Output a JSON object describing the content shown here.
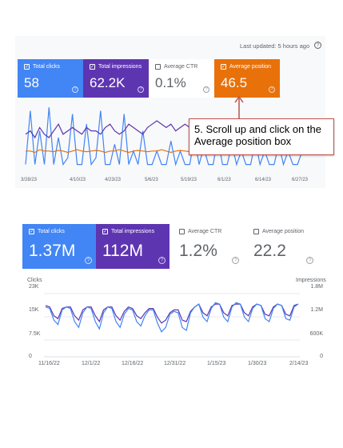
{
  "top": {
    "last_updated": "Last updated: 5 hours ago",
    "help_icon": "help-circle-icon",
    "metrics": [
      {
        "label": "Total clicks",
        "value": "58",
        "checked": true,
        "color": "#4285f4"
      },
      {
        "label": "Total impressions",
        "value": "62.2K",
        "checked": true,
        "color": "#5e35b1"
      },
      {
        "label": "Average CTR",
        "value": "0.1%",
        "checked": false,
        "color": "#ffffff"
      },
      {
        "label": "Average position",
        "value": "46.5",
        "checked": true,
        "color": "#e8710a"
      }
    ],
    "x_ticks": [
      "3/28/23",
      "4/10/23",
      "4/23/23",
      "5/6/23",
      "5/19/23",
      "6/1/23",
      "6/14/23",
      "6/27/23"
    ],
    "callout_text": "5. Scroll up and click on the Average position box",
    "callout_color": "#c0504d"
  },
  "bottom": {
    "metrics": [
      {
        "label": "Total clicks",
        "value": "1.37M",
        "checked": true,
        "color": "#4285f4"
      },
      {
        "label": "Total impressions",
        "value": "112M",
        "checked": true,
        "color": "#5e35b1"
      },
      {
        "label": "Average CTR",
        "value": "1.2%",
        "checked": false,
        "color": "#ffffff"
      },
      {
        "label": "Average position",
        "value": "22.2",
        "checked": false,
        "color": "#ffffff"
      }
    ],
    "left_axis_title": "Clicks",
    "right_axis_title": "Impressions",
    "left_ticks": [
      "23K",
      "15K",
      "7.5K",
      "0"
    ],
    "right_ticks": [
      "1.8M",
      "1.2M",
      "600K",
      "0"
    ],
    "x_ticks": [
      "11/16/22",
      "12/1/22",
      "12/16/22",
      "12/31/22",
      "1/15/23",
      "1/30/23",
      "2/14/23"
    ]
  },
  "chart_data": [
    {
      "type": "line",
      "x_ticks": [
        "3/28/23",
        "4/10/23",
        "4/23/23",
        "5/6/23",
        "5/19/23",
        "6/1/23",
        "6/14/23",
        "6/27/23"
      ],
      "series": [
        {
          "name": "Total clicks",
          "color": "#4285f4",
          "values": [
            0.1,
            0.9,
            0.1,
            0.6,
            0.1,
            0.95,
            0.1,
            0.5,
            0.1,
            0.2,
            0.85,
            0.1,
            0.1,
            0.7,
            0.1,
            0.2,
            0.9,
            0.1,
            0.1,
            0.4,
            0.1,
            0.85,
            0.1,
            0.3,
            0.1,
            0.6,
            0.1,
            0.1,
            0.3,
            0.1,
            0.1,
            0.45,
            0.1,
            0.3,
            0.1,
            0.1,
            0.5,
            0.1,
            0.35,
            0.1,
            0.1,
            0.5,
            0.1,
            0.1,
            0.4,
            0.1,
            0.3,
            0.1,
            0.1,
            0.45,
            0.1,
            0.3,
            0.1,
            0.1,
            0.4,
            0.1,
            0.3,
            0.1,
            0.1,
            0.3
          ]
        },
        {
          "name": "Total impressions",
          "color": "#5e35b1",
          "values": [
            0.55,
            0.6,
            0.5,
            0.65,
            0.55,
            0.5,
            0.6,
            0.7,
            0.55,
            0.6,
            0.65,
            0.6,
            0.55,
            0.65,
            0.6,
            0.6,
            0.55,
            0.65,
            0.7,
            0.6,
            0.55,
            0.6,
            0.7,
            0.65,
            0.6,
            0.55,
            0.65,
            0.7,
            0.75,
            0.7,
            0.65,
            0.7,
            0.6,
            0.65,
            0.7,
            0.65,
            0.6,
            0.65,
            0.55,
            0.6,
            0.65,
            0.6,
            0.5,
            0.45,
            0.55,
            0.6,
            0.5,
            0.45,
            0.5,
            0.55,
            0.5,
            0.45,
            0.5,
            0.55,
            0.5,
            0.45,
            0.5,
            0.55,
            0.5,
            0.5
          ]
        },
        {
          "name": "Average position",
          "color": "#e8710a",
          "values": [
            0.3,
            0.3,
            0.28,
            0.32,
            0.3,
            0.3,
            0.29,
            0.31,
            0.3,
            0.28,
            0.3,
            0.32,
            0.3,
            0.29,
            0.3,
            0.31,
            0.3,
            0.28,
            0.3,
            0.3,
            0.32,
            0.3,
            0.28,
            0.3,
            0.31,
            0.3,
            0.29,
            0.3,
            0.3,
            0.32,
            0.3,
            0.28,
            0.3,
            0.31,
            0.3,
            0.29,
            0.3,
            0.3,
            0.31,
            0.3,
            0.28,
            0.3,
            0.25,
            0.3,
            0.28,
            0.3,
            0.3,
            0.27,
            0.3,
            0.29,
            0.3,
            0.28,
            0.3,
            0.27,
            0.3,
            0.3,
            0.28,
            0.3,
            0.29,
            0.3
          ]
        }
      ]
    },
    {
      "type": "line",
      "x_ticks": [
        "11/16/22",
        "12/1/22",
        "12/16/22",
        "12/31/22",
        "1/15/23",
        "1/30/23",
        "2/14/23"
      ],
      "left_ticks": [
        "23K",
        "15K",
        "7.5K",
        "0"
      ],
      "right_ticks": [
        "1.8M",
        "1.2M",
        "600K",
        "0"
      ],
      "ylim_left": [
        0,
        23000
      ],
      "series": [
        {
          "name": "Total clicks",
          "color": "#4285f4",
          "values": [
            16500,
            16000,
            12000,
            10500,
            15500,
            16500,
            16000,
            11500,
            9500,
            14500,
            16500,
            16000,
            11500,
            9000,
            14500,
            16500,
            16000,
            11500,
            9500,
            14000,
            16000,
            15500,
            11500,
            10000,
            13500,
            15500,
            15500,
            11000,
            8000,
            9500,
            14000,
            15000,
            14500,
            9500,
            8500,
            14500,
            16500,
            17500,
            13000,
            11500,
            16000,
            18000,
            17500,
            13000,
            11500,
            16500,
            18000,
            17500,
            13000,
            11500,
            16000,
            17500,
            17000,
            12500,
            11500,
            16000,
            17500,
            17000,
            12500,
            12000,
            16500,
            17500
          ]
        },
        {
          "name": "Total impressions",
          "color": "#5e35b1",
          "values": [
            17000,
            16500,
            13500,
            12500,
            16000,
            16500,
            16500,
            13500,
            12000,
            15500,
            16500,
            16500,
            13500,
            11500,
            15500,
            16500,
            16500,
            13500,
            12000,
            15000,
            16500,
            16000,
            13500,
            12500,
            14500,
            16000,
            16000,
            13000,
            11000,
            12000,
            14500,
            15500,
            15500,
            12000,
            11500,
            15000,
            16500,
            17500,
            14500,
            13500,
            16500,
            17500,
            17500,
            14500,
            13500,
            17000,
            17500,
            17500,
            14500,
            13500,
            16500,
            17500,
            17000,
            14000,
            13500,
            16500,
            17500,
            17000,
            14000,
            13500,
            17000,
            17500
          ]
        }
      ]
    }
  ]
}
